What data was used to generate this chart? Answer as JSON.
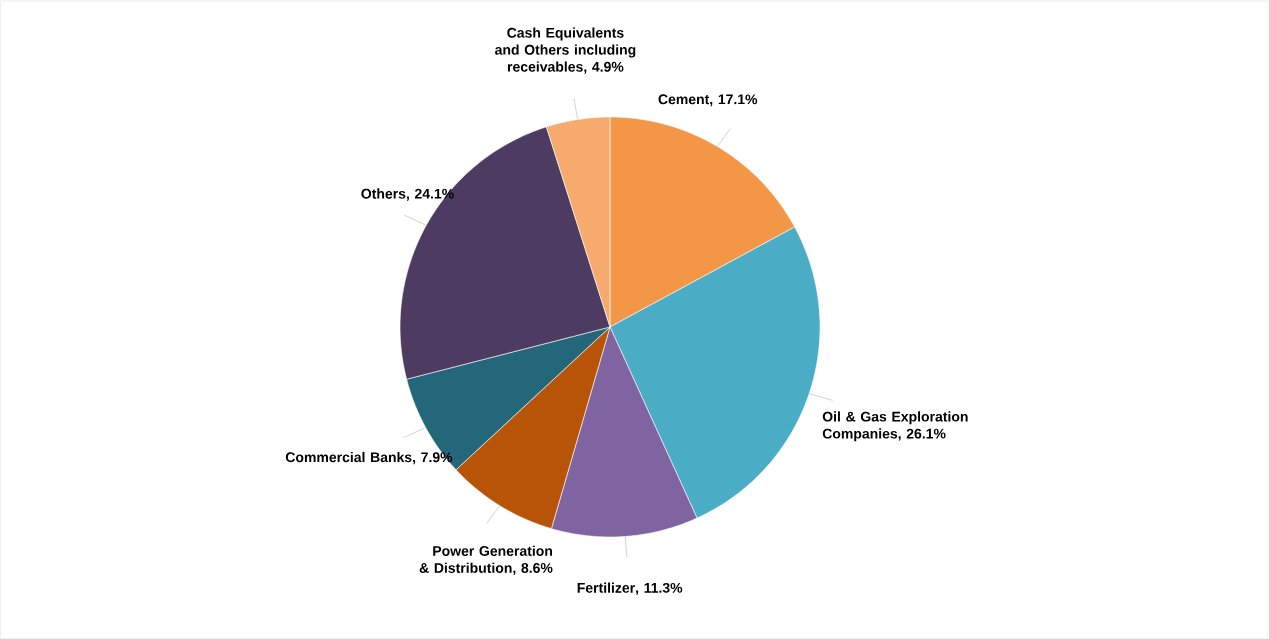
{
  "chart_data": {
    "type": "pie",
    "categories": [
      "Cement",
      "Oil & Gas Exploration Companies",
      "Fertilizer",
      "Power Generation & Distribution",
      "Commercial Banks",
      "Others",
      "Cash Equivalents and Others including receivables"
    ],
    "values": [
      17.1,
      26.1,
      11.3,
      8.6,
      7.9,
      24.1,
      4.9
    ],
    "colors": [
      "#f39645",
      "#4bacc6",
      "#8064a2",
      "#b85407",
      "#25677a",
      "#4d3b62",
      "#f7aa6e"
    ],
    "value_labels": [
      ", 17.1%",
      ", 26.1%",
      ", 11.3%",
      ", 8.6%",
      ", 7.9%",
      ", 24.1%",
      ", 4.9%"
    ]
  }
}
